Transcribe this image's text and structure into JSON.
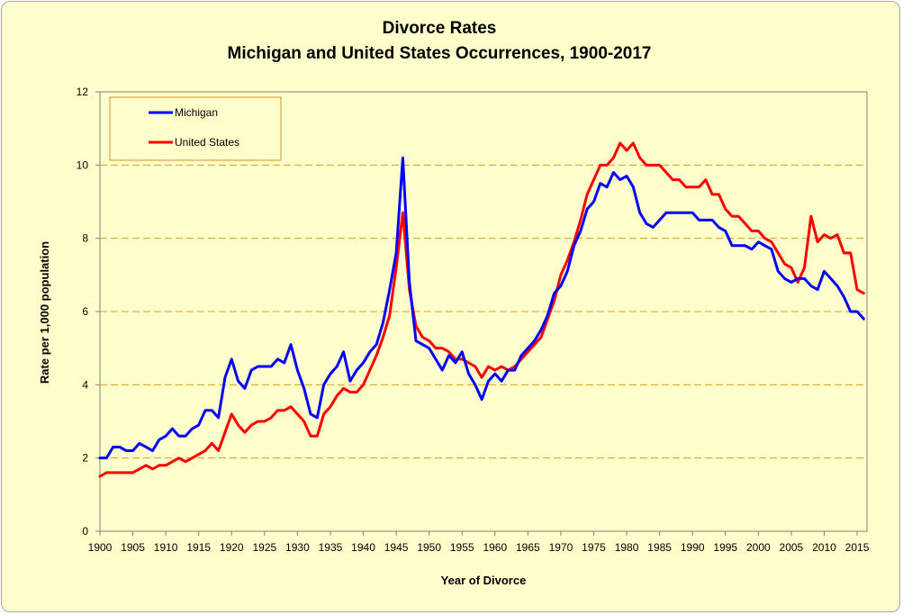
{
  "chart_data": {
    "type": "line",
    "title": "Divorce Rates",
    "subtitle": "Michigan and United States Occurrences, 1900-2017",
    "xlabel": "Year of Divorce",
    "ylabel": "Rate per 1,000 population",
    "xlim": [
      1900,
      2017
    ],
    "ylim": [
      0,
      12
    ],
    "y_ticks": [
      0,
      2,
      4,
      6,
      8,
      10,
      12
    ],
    "x_ticks": [
      1900,
      1905,
      1910,
      1915,
      1920,
      1925,
      1930,
      1935,
      1940,
      1945,
      1950,
      1955,
      1960,
      1965,
      1970,
      1975,
      1980,
      1985,
      1990,
      1995,
      2000,
      2005,
      2010,
      2015
    ],
    "grid": "horizontal dashed",
    "legend_position": "top-left",
    "x": [
      1900,
      1901,
      1902,
      1903,
      1904,
      1905,
      1906,
      1907,
      1908,
      1909,
      1910,
      1911,
      1912,
      1913,
      1914,
      1915,
      1916,
      1917,
      1918,
      1919,
      1920,
      1921,
      1922,
      1923,
      1924,
      1925,
      1926,
      1927,
      1928,
      1929,
      1930,
      1931,
      1932,
      1933,
      1934,
      1935,
      1936,
      1937,
      1938,
      1939,
      1940,
      1941,
      1942,
      1943,
      1944,
      1945,
      1946,
      1947,
      1948,
      1949,
      1950,
      1951,
      1952,
      1953,
      1954,
      1955,
      1956,
      1957,
      1958,
      1959,
      1960,
      1961,
      1962,
      1963,
      1964,
      1965,
      1966,
      1967,
      1968,
      1969,
      1970,
      1971,
      1972,
      1973,
      1974,
      1975,
      1976,
      1977,
      1978,
      1979,
      1980,
      1981,
      1982,
      1983,
      1984,
      1985,
      1986,
      1987,
      1988,
      1989,
      1990,
      1991,
      1992,
      1993,
      1994,
      1995,
      1996,
      1997,
      1998,
      1999,
      2000,
      2001,
      2002,
      2003,
      2004,
      2005,
      2006,
      2007,
      2008,
      2009,
      2010,
      2011,
      2012,
      2013,
      2014,
      2015,
      2016
    ],
    "series": [
      {
        "name": "Michigan",
        "color": "#0000ff",
        "values": [
          2.0,
          2.0,
          2.3,
          2.3,
          2.2,
          2.2,
          2.4,
          2.3,
          2.2,
          2.5,
          2.6,
          2.8,
          2.6,
          2.6,
          2.8,
          2.9,
          3.3,
          3.3,
          3.1,
          4.2,
          4.7,
          4.1,
          3.9,
          4.4,
          4.5,
          4.5,
          4.5,
          4.7,
          4.6,
          5.1,
          4.4,
          3.9,
          3.2,
          3.1,
          4.0,
          4.3,
          4.5,
          4.9,
          4.1,
          4.4,
          4.6,
          4.9,
          5.1,
          5.7,
          6.6,
          7.6,
          10.2,
          6.8,
          5.2,
          5.1,
          5.0,
          4.7,
          4.4,
          4.8,
          4.6,
          4.9,
          4.3,
          4.0,
          3.6,
          4.1,
          4.3,
          4.1,
          4.4,
          4.4,
          4.8,
          5.0,
          5.2,
          5.5,
          5.9,
          6.5,
          6.7,
          7.1,
          7.8,
          8.2,
          8.8,
          9.0,
          9.5,
          9.4,
          9.8,
          9.6,
          9.7,
          9.4,
          8.7,
          8.4,
          8.3,
          8.5,
          8.7,
          8.7,
          8.7,
          8.7,
          8.7,
          8.5,
          8.5,
          8.5,
          8.3,
          8.2,
          7.8,
          7.8,
          7.8,
          7.7,
          7.9,
          7.8,
          7.7,
          7.1,
          6.9,
          6.8,
          6.9,
          6.9,
          6.7,
          6.6,
          7.1,
          6.9,
          6.7,
          6.4,
          6.0,
          6.0,
          5.8
        ]
      },
      {
        "name": "United States",
        "color": "#ff0000",
        "values": [
          1.5,
          1.6,
          1.6,
          1.6,
          1.6,
          1.6,
          1.7,
          1.8,
          1.7,
          1.8,
          1.8,
          1.9,
          2.0,
          1.9,
          2.0,
          2.1,
          2.2,
          2.4,
          2.2,
          2.7,
          3.2,
          2.9,
          2.7,
          2.9,
          3.0,
          3.0,
          3.1,
          3.3,
          3.3,
          3.4,
          3.2,
          3.0,
          2.6,
          2.6,
          3.2,
          3.4,
          3.7,
          3.9,
          3.8,
          3.8,
          4.0,
          4.4,
          4.8,
          5.3,
          5.9,
          7.2,
          8.7,
          6.6,
          5.6,
          5.3,
          5.2,
          5.0,
          5.0,
          4.9,
          4.7,
          4.7,
          4.6,
          4.5,
          4.2,
          4.5,
          4.4,
          4.5,
          4.4,
          4.5,
          4.7,
          4.9,
          5.1,
          5.3,
          5.8,
          6.3,
          7.0,
          7.4,
          7.9,
          8.5,
          9.2,
          9.6,
          10.0,
          10.0,
          10.2,
          10.6,
          10.4,
          10.6,
          10.2,
          10.0,
          10.0,
          10.0,
          9.8,
          9.6,
          9.6,
          9.4,
          9.4,
          9.4,
          9.6,
          9.2,
          9.2,
          8.8,
          8.6,
          8.6,
          8.4,
          8.2,
          8.2,
          8.0,
          7.9,
          7.6,
          7.3,
          7.2,
          6.8,
          7.2,
          8.6,
          7.9,
          8.1,
          8.0,
          8.1,
          7.6,
          7.6,
          6.6,
          6.5
        ]
      }
    ]
  }
}
